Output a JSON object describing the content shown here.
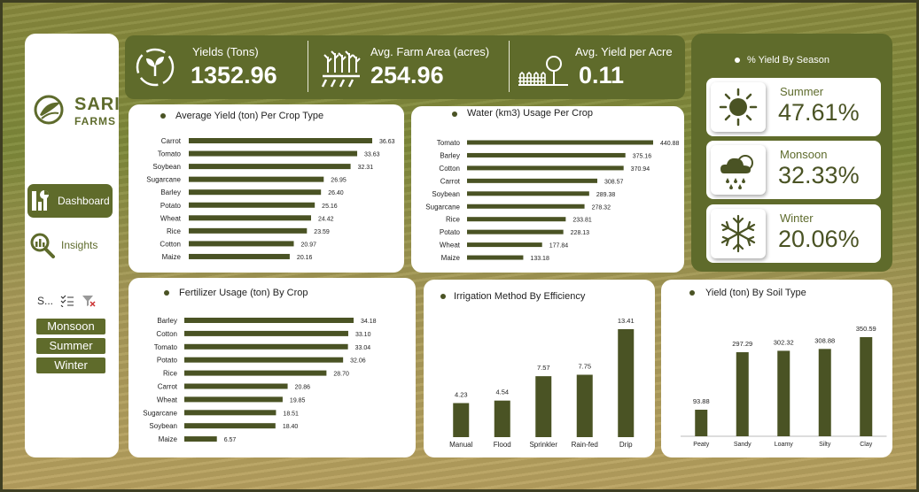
{
  "brand": {
    "name_line1": "SARI",
    "name_line2": "FARMS"
  },
  "nav": {
    "dashboard": "Dashboard",
    "insights": "Insights"
  },
  "slicer": {
    "label": "S...",
    "items": [
      "Monsoon",
      "Summer",
      "Winter"
    ]
  },
  "kpis": {
    "yields_label": "Yields (Tons)",
    "yields_value": "1352.96",
    "area_label": "Avg. Farm Area (acres)",
    "area_value": "254.96",
    "per_acre_label": "Avg. Yield per Acre",
    "per_acre_value": "0.11"
  },
  "season_panel": {
    "title": "% Yield By Season",
    "seasons": [
      {
        "name": "Summer",
        "pct": "47.61%"
      },
      {
        "name": "Monsoon",
        "pct": "32.33%"
      },
      {
        "name": "Winter",
        "pct": "20.06%"
      }
    ]
  },
  "colors": {
    "accent": "#5f6b2b",
    "bar": "#4a5324"
  },
  "chart_data": [
    {
      "id": "yield",
      "type": "bar",
      "orientation": "horizontal",
      "title": "Average Yield (ton) Per Crop Type",
      "categories": [
        "Carrot",
        "Tomato",
        "Soybean",
        "Sugarcane",
        "Barley",
        "Potato",
        "Wheat",
        "Rice",
        "Cotton",
        "Maize"
      ],
      "values": [
        36.63,
        33.63,
        32.31,
        26.95,
        26.4,
        25.16,
        24.42,
        23.59,
        20.97,
        20.16
      ]
    },
    {
      "id": "water",
      "type": "bar",
      "orientation": "horizontal",
      "title": "Water (km3) Usage Per Crop",
      "categories": [
        "Tomato",
        "Barley",
        "Cotton",
        "Carrot",
        "Soybean",
        "Sugarcane",
        "Rice",
        "Potato",
        "Wheat",
        "Maize"
      ],
      "values": [
        440.88,
        375.16,
        370.94,
        308.57,
        289.38,
        278.32,
        233.81,
        228.13,
        177.84,
        133.18
      ]
    },
    {
      "id": "fert",
      "type": "bar",
      "orientation": "horizontal",
      "title": "Fertilizer Usage (ton) By Crop",
      "categories": [
        "Barley",
        "Cotton",
        "Tomato",
        "Potato",
        "Rice",
        "Carrot",
        "Wheat",
        "Sugarcane",
        "Soybean",
        "Maize"
      ],
      "values": [
        34.18,
        33.1,
        33.04,
        32.06,
        28.7,
        20.86,
        19.85,
        18.51,
        18.4,
        6.57
      ]
    },
    {
      "id": "irr",
      "type": "bar",
      "orientation": "vertical",
      "title": "Irrigation Method By Efficiency",
      "categories": [
        "Manual",
        "Flood",
        "Sprinkler",
        "Rain-fed",
        "Drip"
      ],
      "values": [
        4.23,
        4.54,
        7.57,
        7.75,
        13.41
      ]
    },
    {
      "id": "soil",
      "type": "bar",
      "orientation": "vertical",
      "title": "Yield (ton) By Soil Type",
      "categories": [
        "Peaty",
        "Sandy",
        "Loamy",
        "Silty",
        "Clay"
      ],
      "values": [
        93.88,
        297.29,
        302.32,
        308.88,
        350.59
      ]
    }
  ]
}
